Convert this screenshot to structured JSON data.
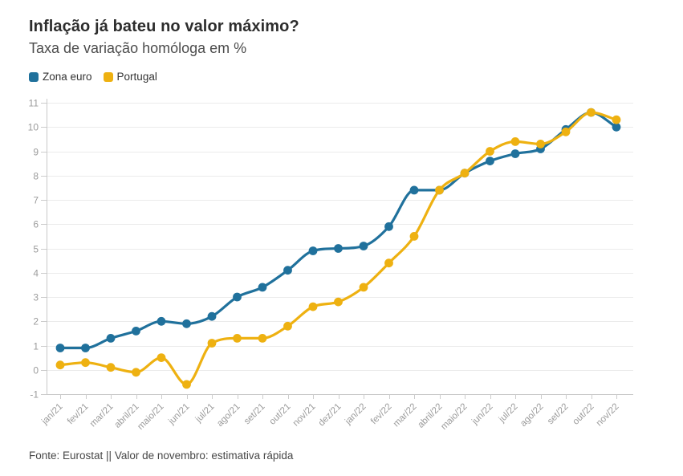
{
  "header": {
    "title": "Inflação já bateu no valor máximo?",
    "subtitle": "Taxa de variação homóloga em %"
  },
  "legend": {
    "items": [
      {
        "label": "Zona euro",
        "color": "#20719c"
      },
      {
        "label": "Portugal",
        "color": "#eeb111"
      }
    ]
  },
  "footer": {
    "text": "Fonte: Eurostat || Valor de novembro: estimativa rápida"
  },
  "colors": {
    "series_zona_euro": "#20719c",
    "series_portugal": "#eeb111",
    "grid": "#ebebeb",
    "axis": "#c9c9c9",
    "tick": "#cccccc",
    "tick_label": "#9b9b9b",
    "title_text": "#2d2d2d",
    "subtitle_text": "#4c4c4c"
  },
  "chart_data": {
    "type": "line",
    "title": "Inflação já bateu no valor máximo?",
    "subtitle": "Taxa de variação homóloga em %",
    "source": "Fonte: Eurostat || Valor de novembro: estimativa rápida",
    "x": [
      "jan/21",
      "fev/21",
      "mar/21",
      "abril/21",
      "maio/21",
      "jun/21",
      "jul/21",
      "ago/21",
      "set/21",
      "out/21",
      "nov/21",
      "dez/21",
      "jan/22",
      "fev/22",
      "mar/22",
      "abril/22",
      "maio/22",
      "jun/22",
      "jul/22",
      "ago/22",
      "set/22",
      "out/22",
      "nov/22"
    ],
    "series": [
      {
        "name": "Zona euro",
        "color": "#20719c",
        "values": [
          0.9,
          0.9,
          1.3,
          1.6,
          2.0,
          1.9,
          2.2,
          3.0,
          3.4,
          4.1,
          4.9,
          5.0,
          5.1,
          5.9,
          7.4,
          7.4,
          8.1,
          8.6,
          8.9,
          9.1,
          9.9,
          10.6,
          10.0
        ]
      },
      {
        "name": "Portugal",
        "color": "#eeb111",
        "values": [
          0.2,
          0.3,
          0.1,
          -0.1,
          0.5,
          -0.6,
          1.1,
          1.3,
          1.3,
          1.8,
          2.6,
          2.8,
          3.4,
          4.4,
          5.5,
          7.4,
          8.1,
          9.0,
          9.4,
          9.3,
          9.8,
          10.6,
          10.3
        ]
      }
    ],
    "ylim": [
      -1,
      11
    ],
    "ytick_step": 1,
    "yticks": [
      -1,
      0,
      1,
      2,
      3,
      4,
      5,
      6,
      7,
      8,
      9,
      10,
      11
    ],
    "grid": "horizontal",
    "legend_position": "top-left",
    "line_smoothing": "monotone"
  }
}
